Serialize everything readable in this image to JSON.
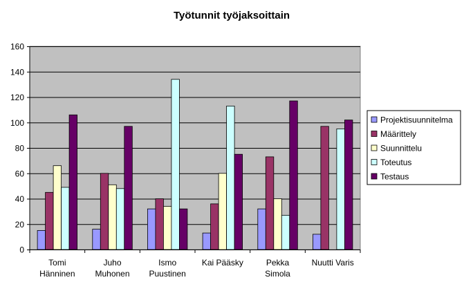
{
  "chart_data": {
    "type": "bar",
    "title": "Työtunnit työjaksoittain",
    "xlabel": "",
    "ylabel": "",
    "ylim": [
      0,
      160
    ],
    "yticks": [
      0,
      20,
      40,
      60,
      80,
      100,
      120,
      140,
      160
    ],
    "grid": true,
    "legend_position": "right",
    "categories": [
      [
        "Tomi",
        "Hänninen"
      ],
      [
        "Juho",
        "Muhonen"
      ],
      [
        "Ismo",
        "Puustinen"
      ],
      [
        "Kai Pääsky"
      ],
      [
        "Pekka",
        "Simola"
      ],
      [
        "Nuutti Varis"
      ]
    ],
    "series": [
      {
        "name": "Projektisuunnitelma",
        "color": "#9999ff",
        "values": [
          15,
          16,
          32,
          13,
          32,
          12
        ]
      },
      {
        "name": "Määrittely",
        "color": "#993366",
        "values": [
          45,
          60,
          40,
          36,
          73,
          97
        ]
      },
      {
        "name": "Suunnittelu",
        "color": "#ffffcc",
        "values": [
          66,
          51,
          34,
          60,
          40,
          0
        ]
      },
      {
        "name": "Toteutus",
        "color": "#ccffff",
        "values": [
          49,
          48,
          134,
          113,
          27,
          95
        ]
      },
      {
        "name": "Testaus",
        "color": "#660066",
        "values": [
          106,
          97,
          32,
          75,
          117,
          102
        ]
      }
    ],
    "plot_background": "#c0c0c0"
  }
}
